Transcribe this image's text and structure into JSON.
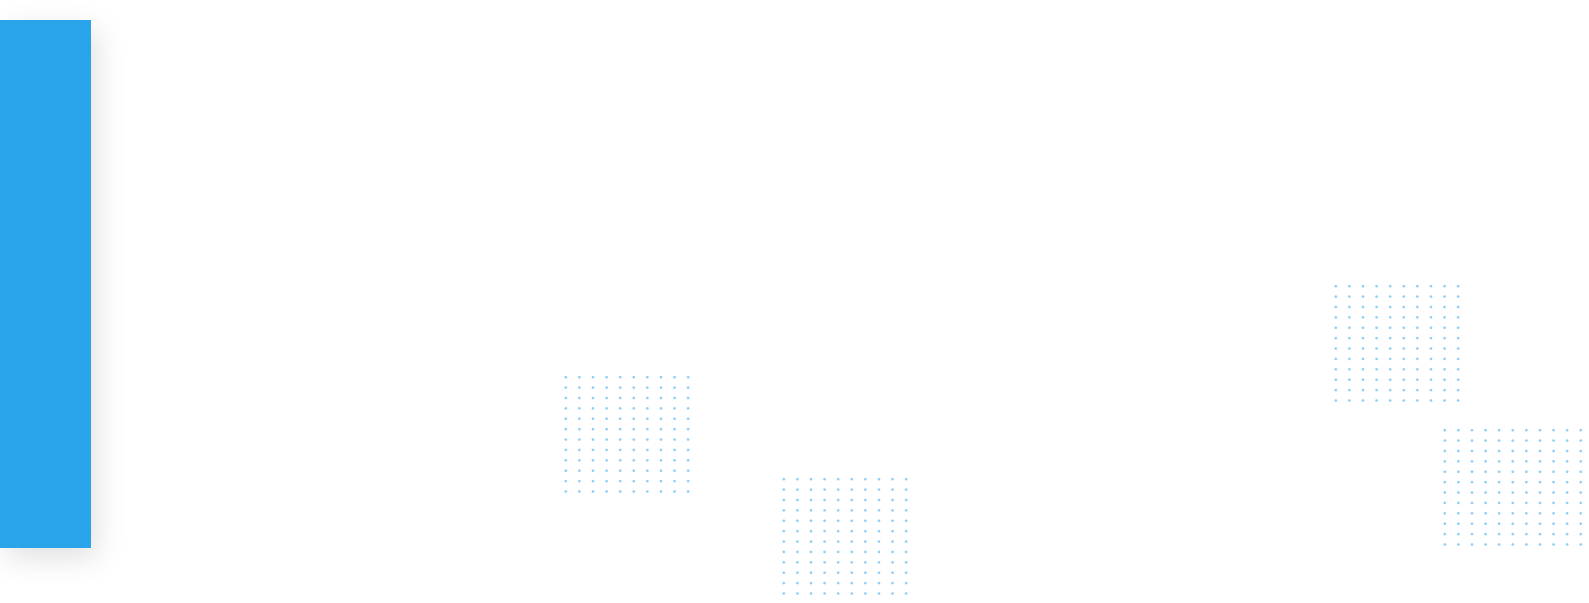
{
  "colors": {
    "panel": "#29a3ea",
    "dots": "#8ccff4",
    "background": "#ffffff"
  },
  "decorations": {
    "dot_grids": [
      "dot-grid-left",
      "dot-grid-center",
      "dot-grid-upper-right",
      "dot-grid-lower-right"
    ]
  }
}
